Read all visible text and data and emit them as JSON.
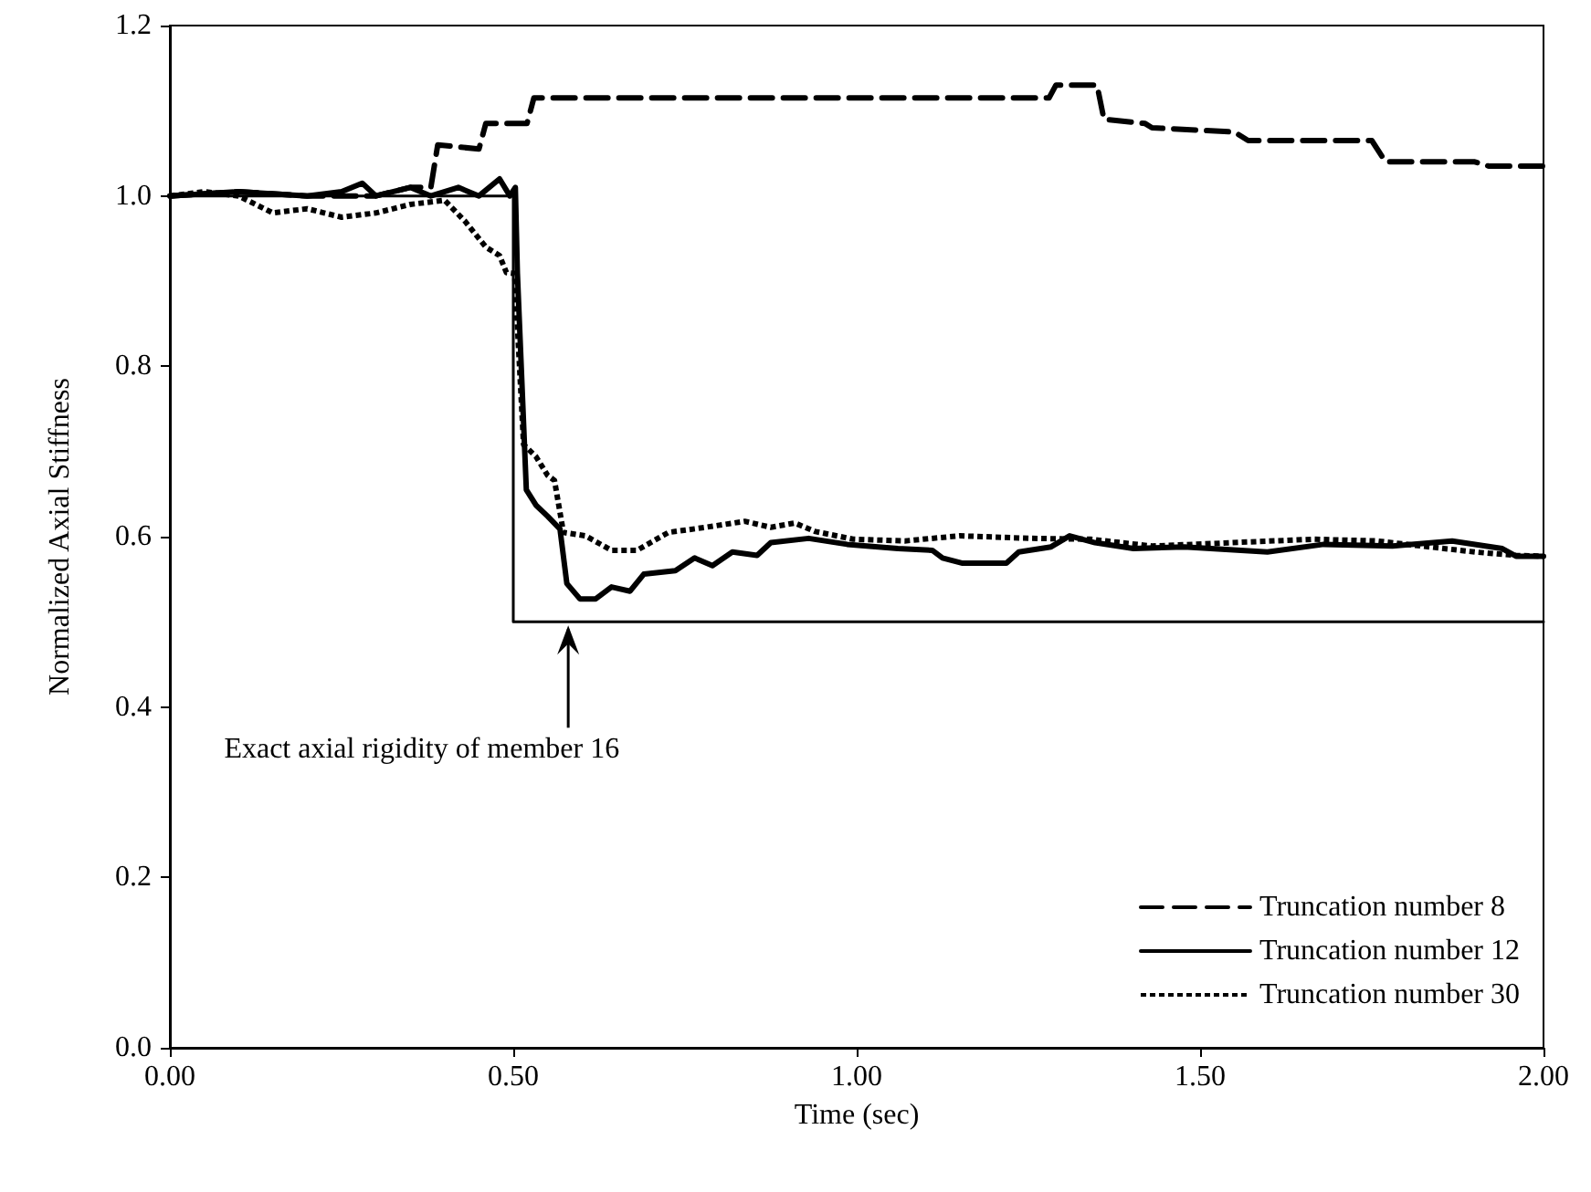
{
  "chart_data": {
    "type": "line",
    "xlabel": "Time (sec)",
    "ylabel": "Normalized Axial Stiffness",
    "xlim": [
      0,
      2
    ],
    "xticks": [
      {
        "value": 0,
        "label": "0.00"
      },
      {
        "value": 0.5,
        "label": "0.50"
      },
      {
        "value": 1,
        "label": "1.00"
      },
      {
        "value": 1.5,
        "label": "1.50"
      },
      {
        "value": 2,
        "label": "2.00"
      }
    ],
    "ylim": [
      0,
      1.2
    ],
    "yticks": [
      {
        "value": 0,
        "label": "0.0"
      },
      {
        "value": 0.2,
        "label": "0.2"
      },
      {
        "value": 0.4,
        "label": "0.4"
      },
      {
        "value": 0.6,
        "label": "0.6"
      },
      {
        "value": 0.8,
        "label": "0.8"
      },
      {
        "value": 1,
        "label": "1.0"
      },
      {
        "value": 1.2,
        "label": "1.2"
      }
    ],
    "grid": false,
    "legend": "bottom right",
    "marker": "none",
    "annotations": [
      {
        "text": "Exact axial rigidity of member 16",
        "x": 0.58,
        "y": 0.5
      }
    ],
    "series": [
      {
        "name": "Truncation number 8",
        "color": "#000000",
        "line_style": "dashed",
        "x": [
          0,
          0.1,
          0.2,
          0.3,
          0.35,
          0.38,
          0.39,
          0.45,
          0.46,
          0.52,
          0.53,
          1.28,
          1.29,
          1.35,
          1.36,
          1.42,
          1.43,
          1.55,
          1.57,
          1.75,
          1.77,
          1.9,
          1.92,
          2.0
        ],
        "values": [
          1.0,
          1.005,
          1.0,
          1.0,
          1.01,
          1.01,
          1.06,
          1.055,
          1.085,
          1.085,
          1.115,
          1.115,
          1.13,
          1.13,
          1.09,
          1.085,
          1.08,
          1.075,
          1.065,
          1.065,
          1.04,
          1.04,
          1.035,
          1.035
        ]
      },
      {
        "name": "Truncation number 12",
        "color": "#000000",
        "line_style": "solid",
        "x": [
          0,
          0.1,
          0.2,
          0.25,
          0.28,
          0.3,
          0.35,
          0.38,
          0.42,
          0.45,
          0.48,
          0.495,
          0.503,
          0.506,
          0.519,
          0.533,
          0.55,
          0.568,
          0.578,
          0.597,
          0.62,
          0.643,
          0.67,
          0.69,
          0.736,
          0.764,
          0.79,
          0.819,
          0.855,
          0.875,
          0.93,
          0.986,
          1.06,
          1.11,
          1.125,
          1.153,
          1.218,
          1.236,
          1.283,
          1.31,
          1.347,
          1.403,
          1.477,
          1.598,
          1.68,
          1.78,
          1.867,
          1.94,
          1.96,
          2.0
        ],
        "values": [
          1.0,
          1.005,
          1.0,
          1.005,
          1.015,
          1.0,
          1.01,
          1.0,
          1.01,
          1.0,
          1.02,
          1.0,
          1.01,
          0.909,
          0.655,
          0.637,
          0.624,
          0.609,
          0.545,
          0.527,
          0.527,
          0.541,
          0.536,
          0.556,
          0.56,
          0.575,
          0.566,
          0.582,
          0.578,
          0.593,
          0.598,
          0.591,
          0.586,
          0.584,
          0.575,
          0.569,
          0.569,
          0.582,
          0.588,
          0.601,
          0.593,
          0.586,
          0.588,
          0.582,
          0.591,
          0.589,
          0.595,
          0.586,
          0.577,
          0.577
        ]
      },
      {
        "name": "Truncation number 30",
        "color": "#000000",
        "line_style": "dotted",
        "x": [
          0,
          0.05,
          0.1,
          0.15,
          0.2,
          0.25,
          0.3,
          0.35,
          0.4,
          0.43,
          0.46,
          0.48,
          0.49,
          0.502,
          0.515,
          0.533,
          0.55,
          0.56,
          0.573,
          0.605,
          0.643,
          0.68,
          0.726,
          0.78,
          0.837,
          0.875,
          0.91,
          0.94,
          0.995,
          1.07,
          1.15,
          1.255,
          1.34,
          1.43,
          1.665,
          1.757,
          1.9,
          1.96,
          2.0
        ],
        "values": [
          1.0,
          1.005,
          1.0,
          0.98,
          0.985,
          0.975,
          0.98,
          0.99,
          0.995,
          0.97,
          0.94,
          0.93,
          0.91,
          0.909,
          0.708,
          0.694,
          0.672,
          0.666,
          0.605,
          0.601,
          0.584,
          0.584,
          0.605,
          0.611,
          0.618,
          0.611,
          0.616,
          0.606,
          0.597,
          0.595,
          0.601,
          0.598,
          0.597,
          0.589,
          0.597,
          0.595,
          0.582,
          0.578,
          0.577
        ]
      },
      {
        "color": "#000000",
        "line_style": "solid",
        "x": [
          0,
          0.5,
          0.5,
          2.0
        ],
        "values": [
          1.0,
          1.0,
          0.5,
          0.5
        ]
      }
    ]
  }
}
